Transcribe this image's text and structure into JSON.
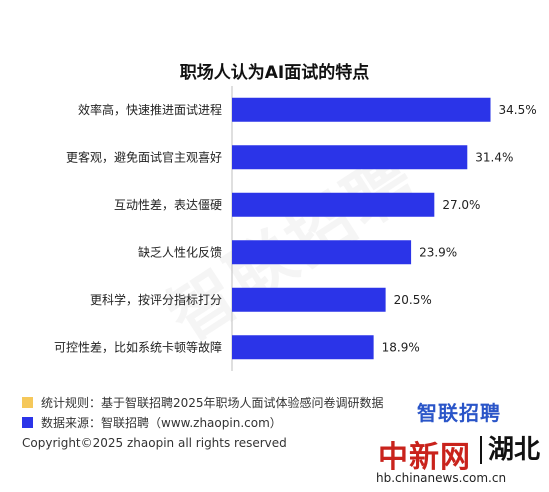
{
  "chart_data": {
    "type": "bar",
    "orientation": "horizontal",
    "title": "职场人认为AI面试的特点",
    "categories": [
      "效率高，快速推进面试进程",
      "更客观，避免面试官主观喜好",
      "互动性差，表达僵硬",
      "缺乏人性化反馈",
      "更科学，按评分指标打分",
      "可控性差，比如系统卡顿等故障"
    ],
    "values": [
      34.5,
      31.4,
      27.0,
      23.9,
      20.5,
      18.9
    ],
    "value_labels": [
      "34.5%",
      "31.4%",
      "27.0%",
      "23.9%",
      "20.5%",
      "18.9%"
    ],
    "xlim": [
      0,
      37.5
    ],
    "grid": false,
    "bar_color": "#2b34e8"
  },
  "watermark": "智联招聘",
  "notes": [
    {
      "text": "统计规则：基于智联招聘2025年职场人面试体验感问卷调研数据",
      "color": "#f5c85a"
    },
    {
      "text": "数据来源：智联招聘（www.zhaopin.com）",
      "color": "#2b34e8"
    }
  ],
  "copyright": "Copyright©2025 zhaopin all rights reserved",
  "brand_logo": "智联招聘",
  "news_logo": "中新网",
  "region_logo": "湖北",
  "site_url": "hb.chinanews.com.cn"
}
